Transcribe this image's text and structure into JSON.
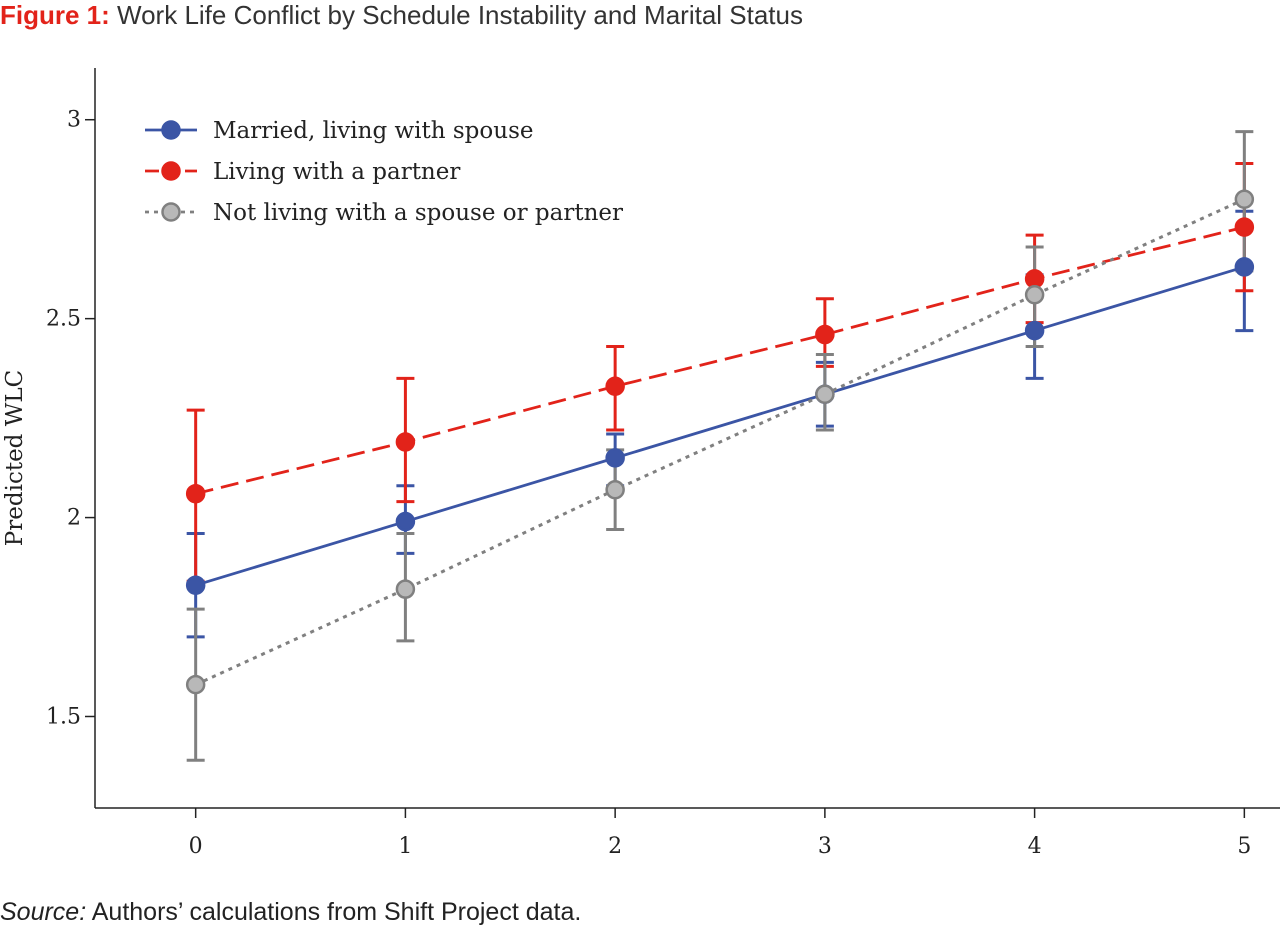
{
  "figure": {
    "label": "Figure 1:",
    "title": "Work Life Conflict by Schedule Instability and Marital Status"
  },
  "source": {
    "label": "Source:",
    "text": "Authors’ calculations from Shift Project data."
  },
  "chart_data": {
    "type": "line",
    "title": "Work Life Conflict by Schedule Instability and Marital Status",
    "xlabel": "",
    "ylabel": "Predicted WLC",
    "x": [
      0,
      1,
      2,
      3,
      4,
      5
    ],
    "x_ticks": [
      "0",
      "1",
      "2",
      "3",
      "4",
      "5"
    ],
    "y_ticks": [
      {
        "value": 1.5,
        "label": "1.5"
      },
      {
        "value": 2,
        "label": "2"
      },
      {
        "value": 2.5,
        "label": "2.5"
      },
      {
        "value": 3,
        "label": "3"
      }
    ],
    "xlim": [
      -0.48,
      5.17
    ],
    "ylim": [
      1.27,
      3.13
    ],
    "grid": false,
    "legend_position": "top-left",
    "series": [
      {
        "name": "Married, living with spouse",
        "color": "#3b55a5",
        "marker_fill": "#3b55a5",
        "line_style": "solid",
        "y": [
          1.83,
          1.99,
          2.15,
          2.31,
          2.47,
          2.63
        ],
        "lower": [
          1.7,
          1.91,
          2.08,
          2.23,
          2.35,
          2.47
        ],
        "upper": [
          1.96,
          2.08,
          2.21,
          2.39,
          2.61,
          2.77
        ]
      },
      {
        "name": "Living with a partner",
        "color": "#e2231a",
        "marker_fill": "#e2231a",
        "line_style": "dashed",
        "y": [
          2.06,
          2.19,
          2.33,
          2.46,
          2.6,
          2.73
        ],
        "lower": [
          1.84,
          2.04,
          2.22,
          2.38,
          2.49,
          2.57
        ],
        "upper": [
          2.27,
          2.35,
          2.43,
          2.55,
          2.71,
          2.89
        ]
      },
      {
        "name": "Not living with a spouse or partner",
        "color": "#808080",
        "marker_fill": "#b8b8b8",
        "line_style": "dotted",
        "y": [
          1.58,
          1.82,
          2.07,
          2.31,
          2.56,
          2.8
        ],
        "lower": [
          1.39,
          1.69,
          1.97,
          2.22,
          2.43,
          2.62
        ],
        "upper": [
          1.77,
          1.96,
          2.17,
          2.41,
          2.68,
          2.97
        ]
      }
    ]
  }
}
